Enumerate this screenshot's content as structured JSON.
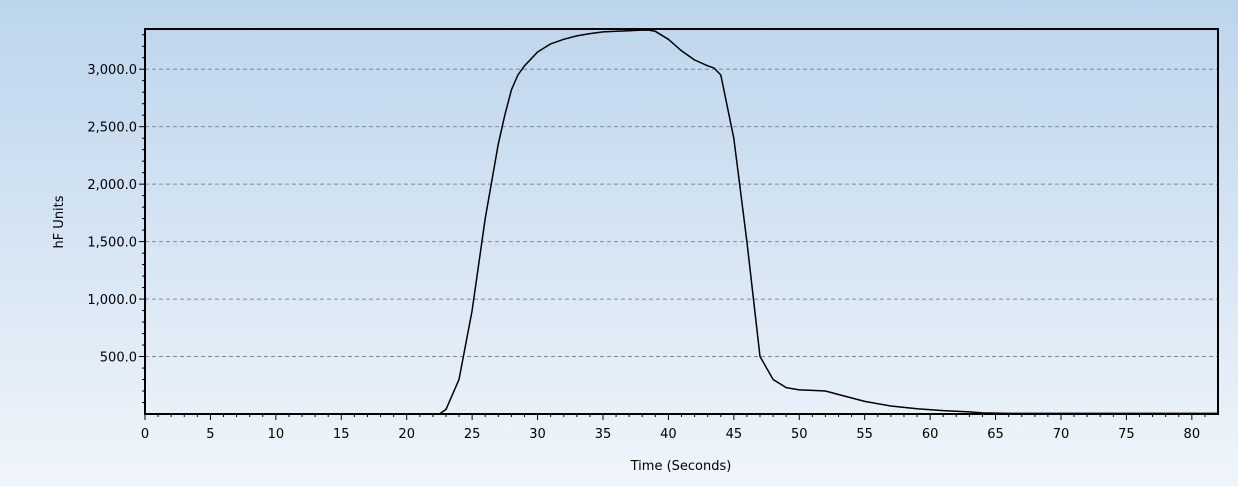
{
  "chart_data": {
    "type": "line",
    "title": "",
    "xlabel": "Time (Seconds)",
    "ylabel": "hF Units",
    "xlim": [
      0,
      82
    ],
    "ylim": [
      0,
      3350
    ],
    "x_ticks": [
      0,
      5,
      10,
      15,
      20,
      25,
      30,
      35,
      40,
      45,
      50,
      55,
      60,
      65,
      70,
      75,
      80
    ],
    "x_tick_labels": [
      "0",
      "5",
      "10",
      "15",
      "20",
      "25",
      "30",
      "35",
      "40",
      "45",
      "50",
      "55",
      "60",
      "65",
      "70",
      "75",
      "80"
    ],
    "y_ticks": [
      500,
      1000,
      1500,
      2000,
      2500,
      3000
    ],
    "y_tick_labels": [
      "500.0",
      "1,000.0",
      "1,500.0",
      "2,000.0",
      "2,500.0",
      "3,000.0"
    ],
    "grid": "horizontal dashed",
    "legend": "none",
    "series": [
      {
        "line_color": "#000000",
        "x": [
          0,
          22.5,
          23,
          24,
          25,
          26,
          27,
          27.5,
          28,
          28.5,
          29,
          30,
          31,
          32,
          33,
          34,
          35,
          36,
          37,
          38,
          38.5,
          39,
          40,
          41,
          42,
          43,
          43.5,
          44,
          45,
          46,
          47,
          48,
          49,
          50,
          51,
          52,
          53,
          55,
          57,
          59,
          61,
          63,
          64,
          66,
          70,
          75,
          80,
          82
        ],
        "y": [
          0,
          0,
          40,
          300,
          900,
          1700,
          2350,
          2600,
          2820,
          2950,
          3030,
          3150,
          3220,
          3260,
          3290,
          3310,
          3325,
          3330,
          3335,
          3340,
          3340,
          3330,
          3260,
          3160,
          3080,
          3030,
          3010,
          2950,
          2400,
          1500,
          500,
          300,
          230,
          210,
          205,
          200,
          170,
          110,
          70,
          45,
          30,
          18,
          10,
          5,
          5,
          5,
          5,
          5
        ]
      }
    ]
  }
}
